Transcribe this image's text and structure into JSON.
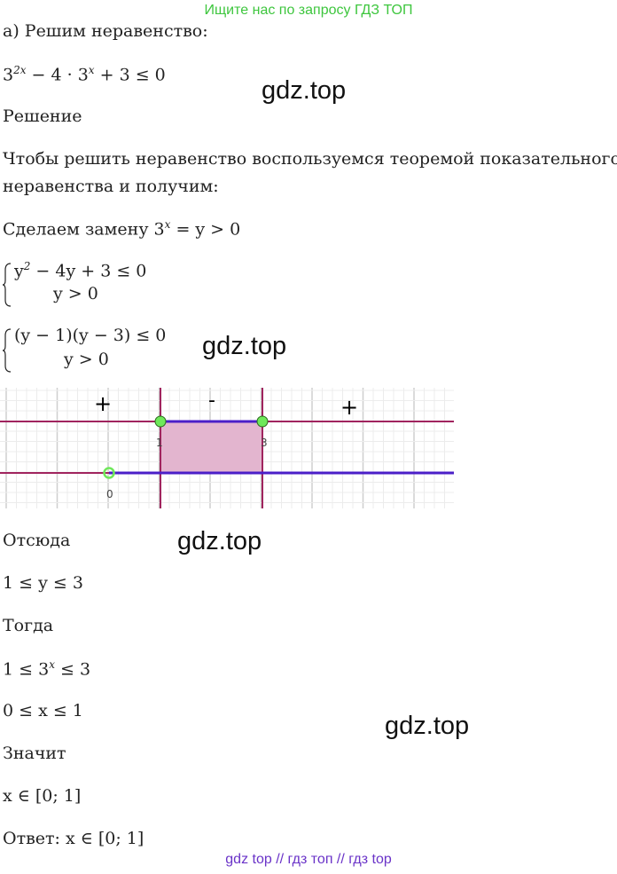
{
  "header_banner": "Ищите нас по запросу ГДЗ ТОП",
  "task": "а) Решим неравенство:",
  "inequality": {
    "a": "3",
    "a_exp": "2x",
    "b": " − 4 · 3",
    "b_exp": "x",
    "c": " + 3 ≤ 0"
  },
  "solution_label": "Решение",
  "intro_line1": "Чтобы решить неравенство воспользуемся теоремой показательного",
  "intro_line2": "неравенства и получим:",
  "substitution": {
    "text": "Сделаем замену 3",
    "exp": "x",
    "rest": " = y > 0"
  },
  "system1": {
    "line1_a": "y",
    "line1_exp": "2",
    "line1_b": " − 4y + 3 ≤ 0",
    "line2": "y > 0"
  },
  "system2": {
    "line1": "(y − 1)(y − 3) ≤ 0",
    "line2": "y > 0"
  },
  "graph": {
    "signs": [
      "+",
      "-",
      "+"
    ],
    "labels": [
      "0",
      "1",
      "3"
    ],
    "colors": {
      "axis": "#a0245e",
      "interval": "#4b1fc8",
      "fill": "#e3b5cf",
      "point": "#6fe85a"
    }
  },
  "hence": "Отсюда",
  "result_y": "1 ≤ y ≤ 3",
  "then": "Тогда",
  "result_exp": {
    "a": "1 ≤ 3",
    "exp": "x",
    "b": " ≤ 3"
  },
  "result_x": "0 ≤ x ≤ 1",
  "means": "Значит",
  "membership": "x ∈ [0; 1]",
  "answer": "Ответ: x ∈ [0; 1]",
  "watermarks": [
    "gdz.top",
    "gdz.top",
    "gdz.top",
    "gdz.top"
  ],
  "footer": "gdz top  //  гдз топ  //  гдз top"
}
